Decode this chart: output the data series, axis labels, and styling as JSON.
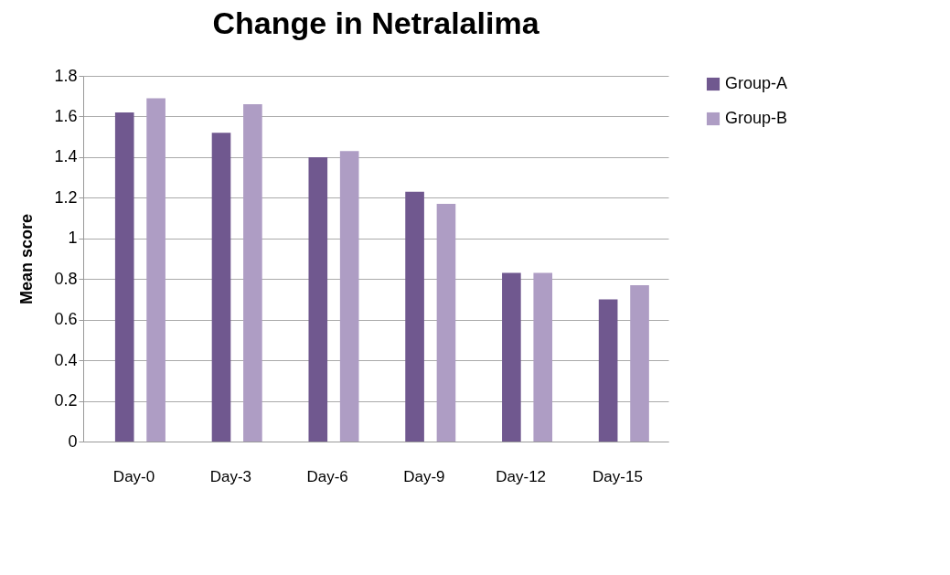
{
  "chart_data": {
    "type": "bar",
    "title": "Change in Netralalima",
    "ylabel": "Mean score",
    "categories": [
      "Day-0",
      "Day-3",
      "Day-6",
      "Day-9",
      "Day-12",
      "Day-15"
    ],
    "series": [
      {
        "name": "Group-A",
        "color": "#70588f",
        "values": [
          1.62,
          1.52,
          1.4,
          1.23,
          0.83,
          0.7
        ]
      },
      {
        "name": "Group-B",
        "color": "#ae9dc4",
        "values": [
          1.69,
          1.66,
          1.43,
          1.17,
          0.83,
          0.77
        ]
      }
    ],
    "ylim": [
      0,
      1.8
    ],
    "yticks": [
      0,
      0.2,
      0.4,
      0.6,
      0.8,
      1,
      1.2,
      1.4,
      1.6,
      1.8
    ],
    "grid": "y",
    "legend": "right"
  }
}
